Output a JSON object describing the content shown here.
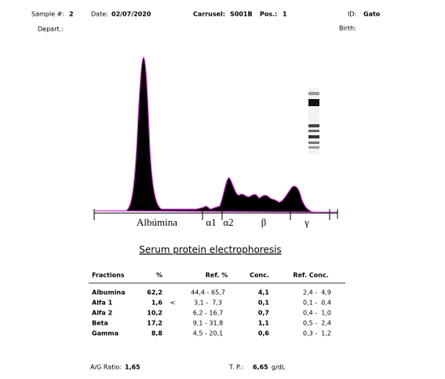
{
  "header": {
    "sample_label": "Sample #:",
    "sample": "2",
    "date_label": "Date:",
    "date": "02/07/2020",
    "carrusel_label": "Carrusel:",
    "carrusel": "S001B",
    "pos_label": "Pos.:",
    "pos": "1",
    "id_label": "ID:",
    "id": "Gato",
    "depart_label": "Depart.:",
    "birth_label": "Birth:"
  },
  "fraction_labels": [
    "Albúmina",
    "α1",
    "α2",
    "β",
    "γ"
  ],
  "title": "Serum protein electrophoresis",
  "table": {
    "columns": [
      "Fractions",
      "%",
      "Ref. %",
      "Conc.",
      "Ref. Conc."
    ],
    "rows": [
      [
        "Albumina",
        "62,2",
        "",
        "44,4 - 65,7",
        "4,1",
        "2,4 -  4,9"
      ],
      [
        "Alfa 1",
        "1,6",
        "<",
        "3,1 -  7,3",
        "0,1",
        "0,1 -  0,4"
      ],
      [
        "Alfa 2",
        "10,2",
        "",
        "6,2 - 16,7",
        "0,7",
        "0,4 -  1,0"
      ],
      [
        "Beta",
        "17,2",
        "",
        "9,1 - 31,8",
        "1,1",
        "0,5 -  2,4"
      ],
      [
        "Gamma",
        "8,8",
        "",
        "4,5 - 20,1",
        "0,6",
        "0,3 -  1,2"
      ]
    ]
  },
  "footer": {
    "ag_label": "A/G Ratio:",
    "ag": "1,65",
    "tp_label": "T. P.:",
    "tp": "6,65",
    "tp_unit": "g/dL"
  }
}
